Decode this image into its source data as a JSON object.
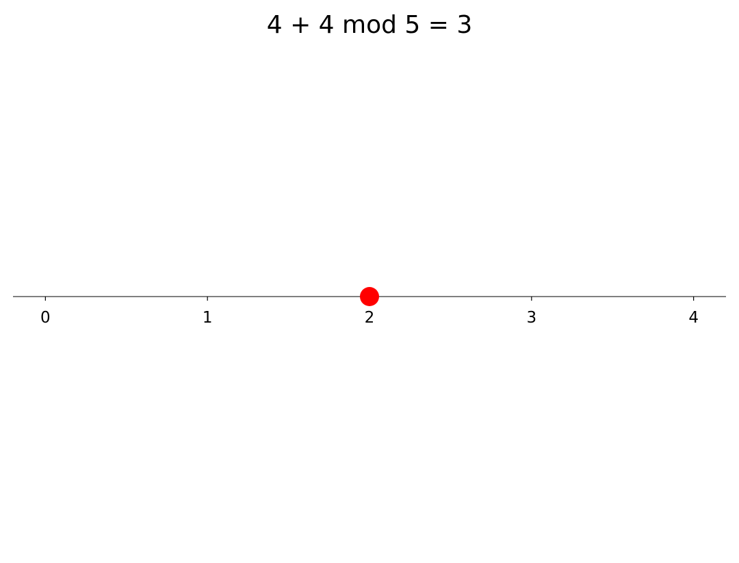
{
  "chart_data": {
    "type": "scatter",
    "title": "4 + 4 mod 5 = 3",
    "xlabel": "",
    "ylabel": "",
    "xlim": [
      -0.2,
      4.2
    ],
    "x_ticks": [
      0,
      1,
      2,
      3,
      4
    ],
    "tick_labels": [
      "0",
      "1",
      "2",
      "3",
      "4"
    ],
    "series": [
      {
        "x": [
          2
        ],
        "y": [
          0
        ],
        "color": "#ff0000",
        "marker": "circle"
      }
    ],
    "axis_color": "#808080",
    "grid": false,
    "legend": "none"
  }
}
